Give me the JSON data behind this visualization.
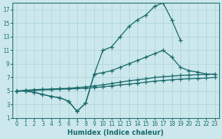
{
  "bg_color": "#cce8ec",
  "grid_color": "#b0d8dc",
  "line_color": "#1a6b6b",
  "marker": "+",
  "xlabel": "Humidex (Indice chaleur)",
  "xlim": [
    -0.5,
    23.5
  ],
  "ylim": [
    1,
    18
  ],
  "xticks": [
    0,
    1,
    2,
    3,
    4,
    5,
    6,
    7,
    8,
    9,
    10,
    11,
    12,
    13,
    14,
    15,
    16,
    17,
    18,
    19,
    20,
    21,
    22,
    23
  ],
  "yticks": [
    1,
    3,
    5,
    7,
    9,
    11,
    13,
    15,
    17
  ],
  "line1_x": [
    0,
    1,
    2,
    3,
    4,
    5,
    6,
    7,
    8,
    9,
    10,
    11,
    12,
    13,
    14,
    15,
    16,
    17,
    18,
    19
  ],
  "line1_y": [
    5,
    5,
    4.8,
    4.5,
    4.2,
    4.0,
    3.5,
    2.0,
    3.2,
    7.5,
    11.0,
    11.5,
    13.0,
    14.5,
    15.5,
    16.2,
    17.5,
    18.0,
    15.5,
    12.5
  ],
  "line2_x": [
    0,
    1,
    2,
    3,
    4,
    5,
    6,
    7,
    8,
    9,
    10,
    11,
    12,
    13,
    14,
    15,
    16,
    17,
    18,
    19,
    20,
    21,
    22,
    23
  ],
  "line2_y": [
    5,
    5,
    4.8,
    4.5,
    4.2,
    4.0,
    3.5,
    2.0,
    3.2,
    7.5,
    7.7,
    8.0,
    8.5,
    9.0,
    9.5,
    10.0,
    10.5,
    11.0,
    10.0,
    8.5,
    8.0,
    7.8,
    7.5,
    7.5
  ],
  "line3_x": [
    0,
    1,
    2,
    3,
    4,
    5,
    6,
    7,
    8,
    9,
    10,
    11,
    12,
    13,
    14,
    15,
    16,
    17,
    18,
    19,
    20,
    21,
    22,
    23
  ],
  "line3_y": [
    5,
    5.1,
    5.2,
    5.25,
    5.3,
    5.35,
    5.4,
    5.5,
    5.6,
    5.75,
    5.9,
    6.1,
    6.3,
    6.5,
    6.65,
    6.8,
    7.0,
    7.1,
    7.2,
    7.3,
    7.35,
    7.4,
    7.45,
    7.5
  ],
  "line4_x": [
    0,
    1,
    2,
    3,
    4,
    5,
    6,
    7,
    8,
    9,
    10,
    11,
    12,
    13,
    14,
    15,
    16,
    17,
    18,
    19,
    20,
    21,
    22,
    23
  ],
  "line4_y": [
    5,
    5.05,
    5.1,
    5.15,
    5.2,
    5.25,
    5.3,
    5.35,
    5.4,
    5.5,
    5.6,
    5.75,
    5.9,
    6.0,
    6.15,
    6.3,
    6.45,
    6.55,
    6.65,
    6.75,
    6.8,
    6.85,
    6.9,
    7.0
  ]
}
